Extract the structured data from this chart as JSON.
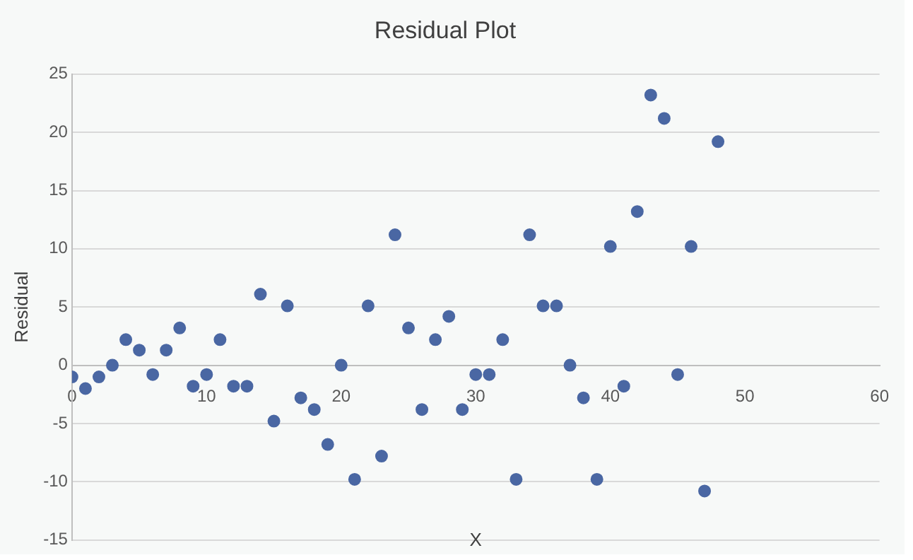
{
  "chart_data": {
    "type": "scatter",
    "title": "Residual Plot",
    "xlabel": "X",
    "ylabel": "Residual",
    "xlim": [
      0,
      60
    ],
    "xticks": [
      0,
      10,
      20,
      30,
      40,
      50,
      60
    ],
    "ylim": [
      -15,
      25
    ],
    "yticks": [
      -15,
      -10,
      -5,
      0,
      5,
      10,
      15,
      20,
      25
    ],
    "grid": "y",
    "marker": "circle",
    "series": [
      {
        "color": "#4a67a3",
        "x": [
          0,
          1,
          2,
          3,
          4,
          5,
          6,
          7,
          8,
          9,
          10,
          11,
          12,
          13,
          14,
          15,
          16,
          17,
          18,
          19,
          20,
          21,
          22,
          23,
          24,
          25,
          26,
          27,
          28,
          29,
          30,
          31,
          32,
          33,
          34,
          35,
          36,
          37,
          38,
          39,
          40,
          41,
          42,
          43,
          44,
          45,
          46,
          47,
          48
        ],
        "values": [
          -1,
          -2,
          -1,
          0,
          2.2,
          1.3,
          -0.8,
          1.3,
          3.2,
          -1.8,
          -0.8,
          2.2,
          -1.8,
          -1.8,
          6.1,
          -4.8,
          5.1,
          -2.8,
          -3.8,
          -6.8,
          0,
          -9.8,
          5.1,
          -7.8,
          11.2,
          3.2,
          -3.8,
          2.2,
          4.2,
          -3.8,
          -0.8,
          -0.8,
          2.2,
          -9.8,
          11.2,
          5.1,
          5.1,
          0,
          -2.8,
          -9.8,
          10.2,
          -1.8,
          13.2,
          23.2,
          21.2,
          -0.8,
          10.2,
          -10.8,
          19.2
        ]
      }
    ]
  }
}
